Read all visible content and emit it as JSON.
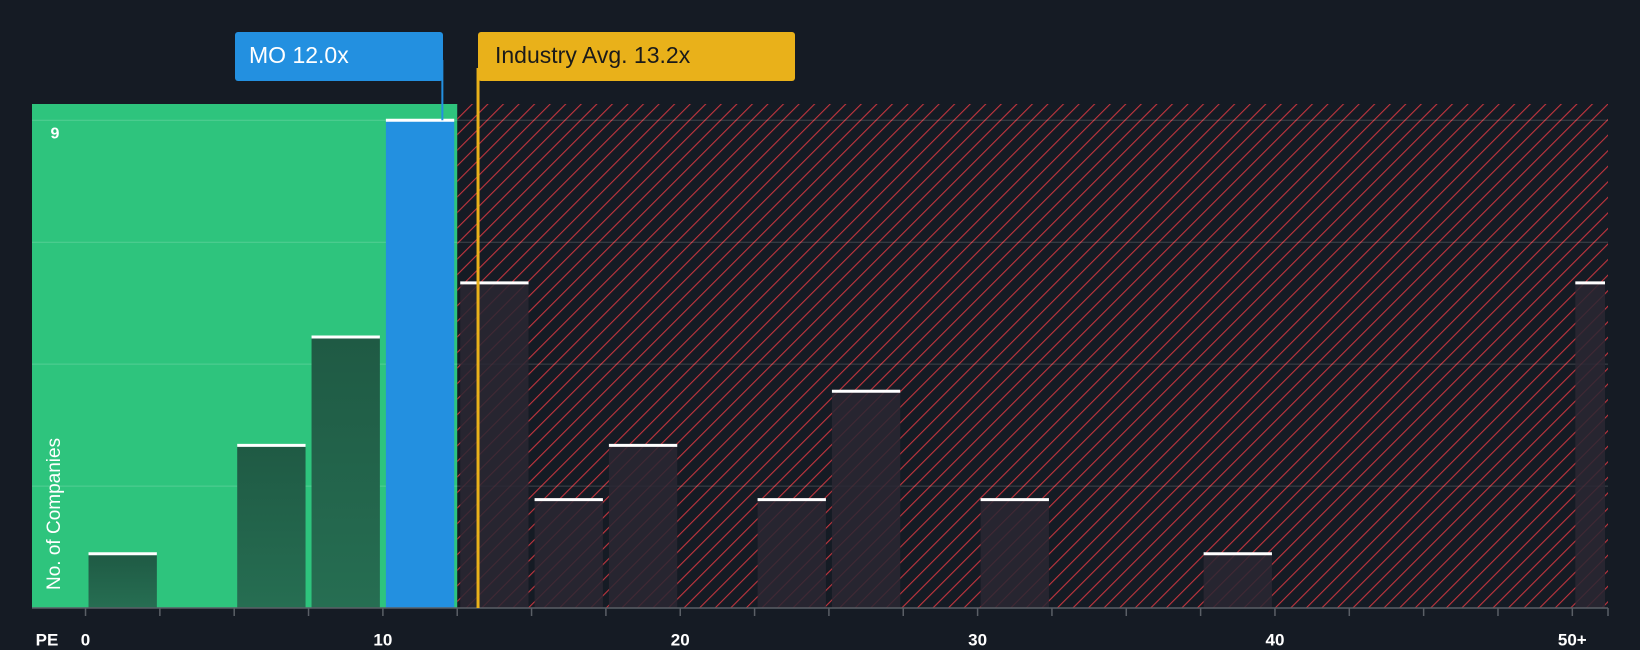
{
  "chart_data": {
    "type": "histogram",
    "x_label": "PE",
    "y_label": "No. of Companies",
    "bins": [
      0,
      2.5,
      5,
      7.5,
      10,
      12.5,
      15,
      17.5,
      20,
      22.5,
      25,
      27.5,
      30,
      32.5,
      35,
      37.5,
      40,
      42.5,
      45,
      47.5,
      50,
      51.2
    ],
    "counts": [
      1,
      0,
      3,
      5,
      9,
      6,
      2,
      3,
      0,
      2,
      4,
      0,
      2,
      0,
      0,
      1,
      0,
      0,
      0,
      0,
      6
    ],
    "highlight_bin": 4,
    "xlim": [
      -1.8,
      51.2
    ],
    "ylim": [
      0,
      9.3
    ],
    "xticks": [
      0,
      10,
      20,
      30,
      40,
      {
        "value": 50,
        "label": "50+"
      }
    ],
    "yticks": [
      9
    ],
    "ygrid": [
      2.25,
      4.5,
      6.75,
      9
    ],
    "company_label": "MO 12.0x",
    "company_value": 12.0,
    "industry_label": "Industry Avg. 13.2x",
    "industry_value": 13.2,
    "colors": {
      "background": "#151b24",
      "fair_zone": "#2ec47d",
      "bar_fair": "#1f5a44",
      "bar_over": "#2a2733",
      "highlight": "#2390e0",
      "hatch": "#c2353e",
      "industry": "#e9b11a"
    }
  }
}
